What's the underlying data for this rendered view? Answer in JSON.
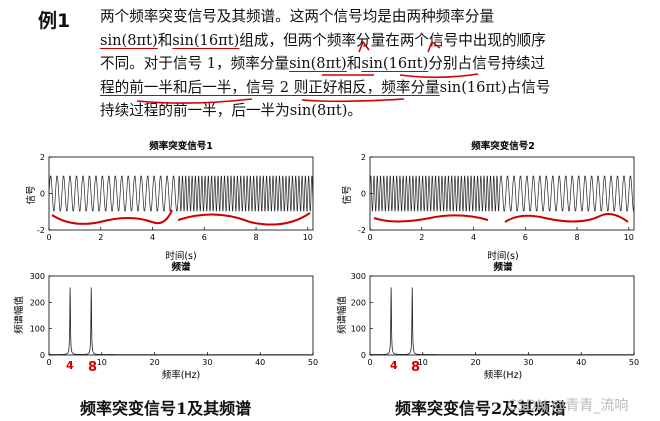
{
  "example_label": "例1",
  "paragraph": {
    "l1a": "两个频率突变信号及其频谱。这两个信号均是由两种频率分量",
    "l2a": "sin(8πt)",
    "l2b": "和",
    "l2c": "sin(16πt)",
    "l2d": "组成，但两个频率分量在两个信号中出现的顺序",
    "l3a": "不同。对于信号 1，频率分量",
    "l3b": "sin(8πt)",
    "l3c": "和",
    "l3d": "sin(16πt)",
    "l3e": "分别占信号持续过",
    "l4a": "程的前一半和后一半，信号 2 则正好相反，频率分量",
    "l4b": "sin(16πt)",
    "l4c": "占信号",
    "l5a": "持续过程的前一半，后一半为",
    "l5b": "sin(8πt)",
    "l5c": "。"
  },
  "charts": {
    "sig1_title": "频率突变信号1",
    "sig2_title": "频率突变信号2",
    "sig_ylabel": "信号",
    "sig_xlabel": "时间(s)",
    "spec_title": "频谱",
    "spec_ylabel": "频谱幅值",
    "spec_xlabel": "频率(Hz)",
    "sig_yticks": [
      "2",
      "0",
      "-2"
    ],
    "sig_xticks": [
      "0",
      "2",
      "4",
      "6",
      "8",
      "10"
    ],
    "spec_yticks": [
      "300",
      "200",
      "100",
      "0"
    ],
    "spec_xticks": [
      "0",
      "10",
      "20",
      "30",
      "40",
      "50"
    ],
    "annot_marks": [
      "4",
      "8"
    ]
  },
  "chart_data": [
    {
      "type": "line",
      "title": "频率突变信号1",
      "xlabel": "时间(s)",
      "ylabel": "信号",
      "xlim": [
        0,
        10.2
      ],
      "ylim": [
        -2,
        2
      ],
      "series": [
        {
          "segments": [
            {
              "t": [
                0,
                5
              ],
              "freq_hz": 4,
              "amp": 1
            },
            {
              "t": [
                5,
                10.2
              ],
              "freq_hz": 8,
              "amp": 1
            }
          ]
        }
      ]
    },
    {
      "type": "line",
      "title": "频率突变信号2",
      "xlabel": "时间(s)",
      "ylabel": "信号",
      "xlim": [
        0,
        10.2
      ],
      "ylim": [
        -2,
        2
      ],
      "series": [
        {
          "segments": [
            {
              "t": [
                0,
                5
              ],
              "freq_hz": 8,
              "amp": 1
            },
            {
              "t": [
                5,
                10.2
              ],
              "freq_hz": 4,
              "amp": 1
            }
          ]
        }
      ]
    },
    {
      "type": "line",
      "title": "频谱",
      "xlabel": "频率(Hz)",
      "ylabel": "频谱幅值",
      "xlim": [
        0,
        50
      ],
      "ylim": [
        0,
        300
      ],
      "peaks": [
        {
          "x": 4,
          "y": 255
        },
        {
          "x": 8,
          "y": 255
        }
      ]
    },
    {
      "type": "line",
      "title": "频谱",
      "xlabel": "频率(Hz)",
      "ylabel": "频谱幅值",
      "xlim": [
        0,
        50
      ],
      "ylim": [
        0,
        300
      ],
      "peaks": [
        {
          "x": 4,
          "y": 255
        },
        {
          "x": 8,
          "y": 255
        }
      ]
    }
  ],
  "captions": {
    "left": "频率突变信号1及其频谱",
    "right": "频率突变信号2及其频谱"
  },
  "watermark": "CSDN @青青_流响",
  "colors": {
    "ink": "#111111",
    "annotation": "#d00000",
    "plot": "#222222"
  }
}
